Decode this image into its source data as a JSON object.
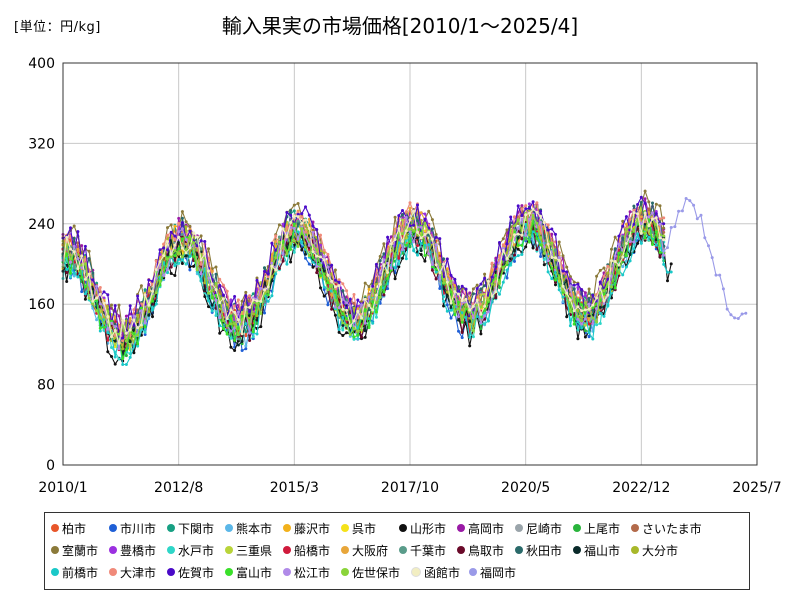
{
  "unit_label": "[単位：円/kg]",
  "chart_data": {
    "type": "line",
    "title": "輸入果実の市場価格[2010/1～2025/4]",
    "xlabel": "",
    "ylabel": "",
    "ylim": [
      0,
      400
    ],
    "yticks": [
      0,
      80,
      160,
      240,
      320,
      400
    ],
    "xlim": [
      "2010-01",
      "2025-07"
    ],
    "xtick_labels": [
      "2010/1",
      "2012/8",
      "2015/3",
      "2017/10",
      "2020/5",
      "2022/12",
      "2025/7"
    ],
    "grid": true,
    "legend_position": "bottom",
    "series": [
      {
        "name": "柏市",
        "color": "#e8562a",
        "base": 168,
        "end": "2023-06"
      },
      {
        "name": "市川市",
        "color": "#1f5fd6",
        "base": 155,
        "end": "2023-06"
      },
      {
        "name": "下関市",
        "color": "#17a083",
        "base": 172,
        "end": "2023-06"
      },
      {
        "name": "熊本市",
        "color": "#5bb7e8",
        "base": 158,
        "end": "2023-06"
      },
      {
        "name": "藤沢市",
        "color": "#f2b11c",
        "base": 170,
        "end": "2023-06"
      },
      {
        "name": "呉市",
        "color": "#f5e21a",
        "base": 164,
        "end": "2023-06"
      },
      {
        "name": "山形市",
        "color": "#111111",
        "base": 150,
        "end": "2023-08"
      },
      {
        "name": "高岡市",
        "color": "#9a1aa6",
        "base": 176,
        "end": "2023-06"
      },
      {
        "name": "尼崎市",
        "color": "#9aa4aa",
        "base": 165,
        "end": "2023-06"
      },
      {
        "name": "上尾市",
        "color": "#2ab43c",
        "base": 162,
        "end": "2023-06"
      },
      {
        "name": "さいたま市",
        "color": "#b36a4a",
        "base": 169,
        "end": "2023-06"
      },
      {
        "name": "室蘭市",
        "color": "#8b7a3a",
        "base": 182,
        "end": "2023-06"
      },
      {
        "name": "豊橋市",
        "color": "#9b30e0",
        "base": 173,
        "end": "2023-06"
      },
      {
        "name": "水戸市",
        "color": "#2fd6c8",
        "base": 156,
        "end": "2023-06"
      },
      {
        "name": "三重県",
        "color": "#b9d43a",
        "base": 167,
        "end": "2023-06"
      },
      {
        "name": "船橋市",
        "color": "#d01a3c",
        "base": 163,
        "end": "2023-06"
      },
      {
        "name": "大阪府",
        "color": "#e8a63a",
        "base": 171,
        "end": "2023-06"
      },
      {
        "name": "千葉市",
        "color": "#5a9c8a",
        "base": 166,
        "end": "2023-06"
      },
      {
        "name": "鳥取市",
        "color": "#6a0a2a",
        "base": 159,
        "end": "2023-06"
      },
      {
        "name": "秋田市",
        "color": "#2a6a6a",
        "base": 174,
        "end": "2023-06"
      },
      {
        "name": "福山市",
        "color": "#0a2a2a",
        "base": 161,
        "end": "2023-06"
      },
      {
        "name": "大分市",
        "color": "#a8b82a",
        "base": 168,
        "end": "2023-06"
      },
      {
        "name": "前橋市",
        "color": "#1ac8c8",
        "base": 152,
        "end": "2023-08"
      },
      {
        "name": "大津市",
        "color": "#f08a7a",
        "base": 177,
        "end": "2023-06"
      },
      {
        "name": "佐賀市",
        "color": "#4a0ac8",
        "base": 180,
        "end": "2023-06"
      },
      {
        "name": "富山市",
        "color": "#3ae02a",
        "base": 160,
        "end": "2023-06"
      },
      {
        "name": "松江市",
        "color": "#b08ae8",
        "base": 166,
        "end": "2023-06"
      },
      {
        "name": "佐世保市",
        "color": "#8ad43a",
        "base": 164,
        "end": "2023-06"
      },
      {
        "name": "函館市",
        "color": "#f2eec2",
        "base": 169,
        "end": "2023-06"
      },
      {
        "name": "福岡市",
        "color": "#9a9ae8",
        "base": 186,
        "end": "2025-04"
      }
    ]
  }
}
